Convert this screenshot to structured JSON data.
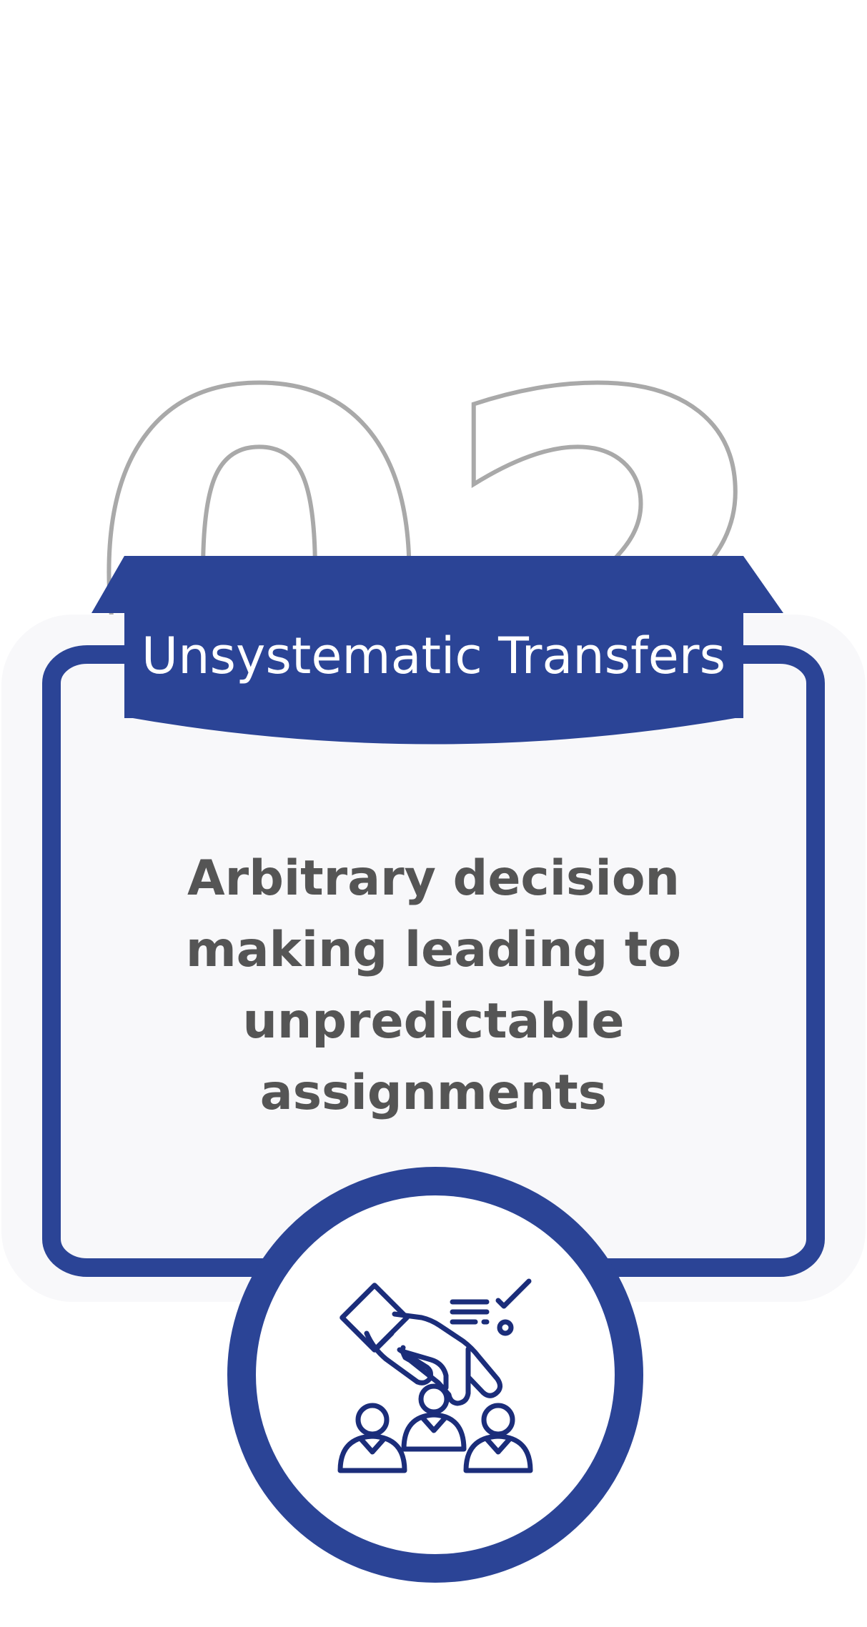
{
  "card": {
    "number": "02",
    "title": "Unsystematic Transfers",
    "description": "Arbitrary decision making leading to unpredictable assignments",
    "icon": "transfer-decision-people-icon"
  },
  "colors": {
    "primary": "#2b4496",
    "icon": "#1b2d7a",
    "number_outline": "#a9a9a9",
    "text": "#555555",
    "card_background": "#f8f8fa"
  }
}
